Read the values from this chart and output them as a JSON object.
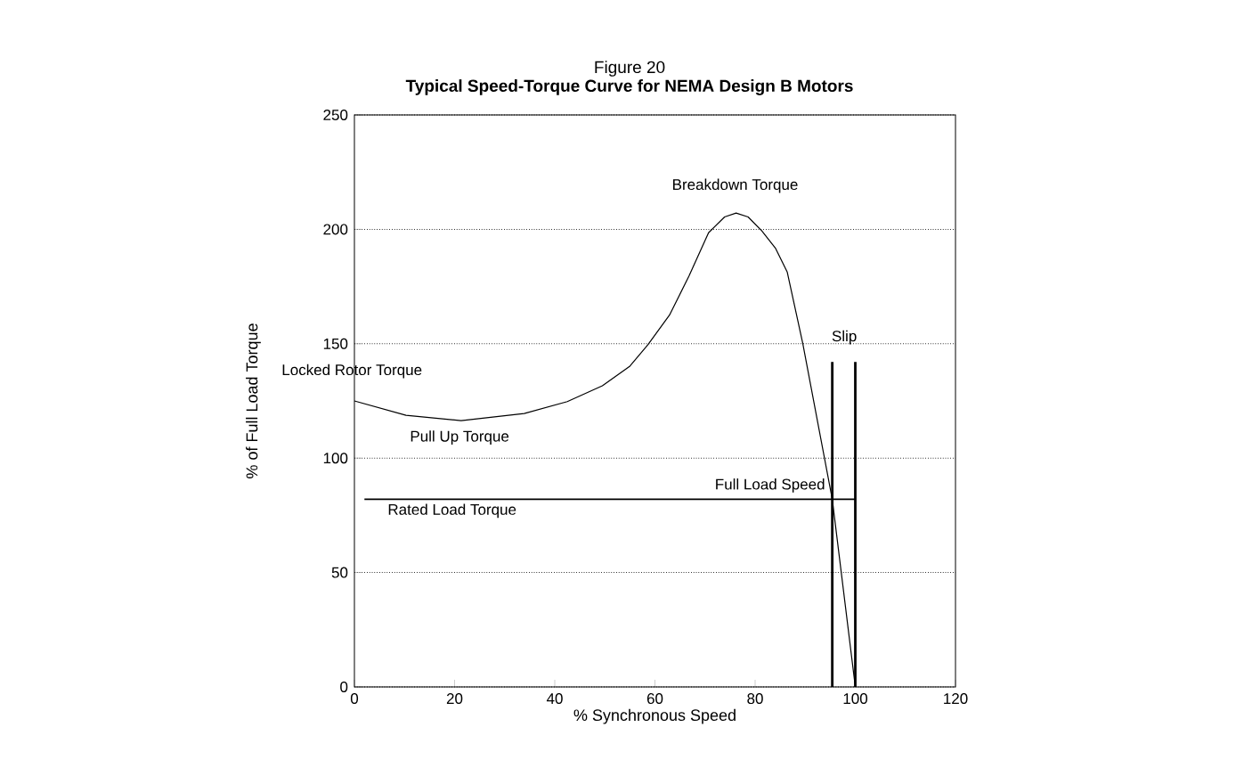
{
  "chart_data": {
    "type": "line",
    "title": "Figure 20",
    "subtitle": "Typical Speed-Torque Curve for NEMA Design B Motors",
    "xlabel": "% Synchronous Speed",
    "ylabel": "% of Full Load Torque",
    "xlim": [
      0,
      120
    ],
    "xticks": [
      0,
      20,
      40,
      60,
      80,
      100,
      120
    ],
    "ylim": [
      0,
      250
    ],
    "yticks": [
      0,
      50,
      100,
      150,
      200,
      250
    ],
    "grid": "y",
    "marker": "none",
    "line_style": "solid",
    "series": [
      {
        "color": "#000000",
        "x": [
          0,
          10.3,
          21.3,
          33.9,
          42.5,
          49.5,
          55.0,
          58.6,
          62.9,
          66.8,
          70.7,
          73.9,
          76.2,
          78.6,
          81.3,
          84.1,
          86.4,
          89.5,
          95.4,
          100
        ],
        "values": [
          125,
          118.7,
          116.4,
          119.5,
          124.7,
          131.6,
          140.2,
          149.6,
          162.5,
          179.6,
          198.5,
          205.4,
          207.1,
          205.4,
          199.4,
          191.6,
          181.4,
          150.3,
          82,
          0
        ]
      },
      {
        "color": "#000000",
        "x": [
          2,
          100
        ],
        "values": [
          82,
          82
        ]
      },
      {
        "color": "#000000",
        "x": [
          95.4,
          95.4
        ],
        "values": [
          0,
          142
        ]
      },
      {
        "color": "#000000",
        "x": [
          100,
          100
        ],
        "values": [
          0,
          142
        ]
      }
    ],
    "annotations": [
      {
        "text": "Locked Rotor Torque",
        "x": 0,
        "y": 125
      },
      {
        "text": "Pull Up Torque",
        "x": 21,
        "y": 116
      },
      {
        "text": "Breakdown Torque",
        "x": 76,
        "y": 207
      },
      {
        "text": "Full Load Speed",
        "x": 95.4,
        "y": 82
      },
      {
        "text": "Rated Load Torque",
        "x": 19,
        "y": 82
      },
      "Slip"
    ]
  }
}
